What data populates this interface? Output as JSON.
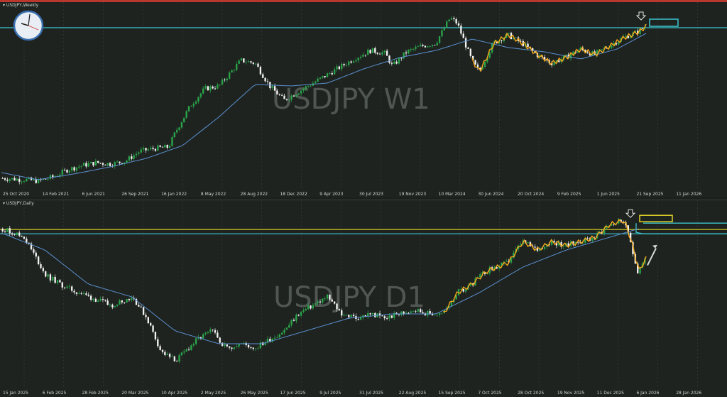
{
  "chart_data": [
    {
      "type": "candlestick",
      "symbol": "USDJPY",
      "timeframe": "Weekly",
      "pane_label": "USDJPY,Weekly",
      "watermark": "USDJPY W1",
      "xlabels": [
        "25 Oct 2020",
        "14 Feb 2021",
        "6 Jun 2021",
        "26 Sep 2021",
        "16 Jan 2022",
        "8 May 2022",
        "28 Aug 2022",
        "18 Dec 2022",
        "9 Apr 2023",
        "30 Jul 2023",
        "19 Nov 2023",
        "10 Mar 2024",
        "30 Jun 2024",
        "20 Oct 2024",
        "9 Feb 2025",
        "1 Jun 2025",
        "21 Sep 2025",
        "11 Jan 2026"
      ],
      "close_path": [
        [
          0,
          104.5
        ],
        [
          0.03,
          104.0
        ],
        [
          0.05,
          103.5
        ],
        [
          0.07,
          105.0
        ],
        [
          0.09,
          107.5
        ],
        [
          0.11,
          109.0
        ],
        [
          0.13,
          110.0
        ],
        [
          0.15,
          109.5
        ],
        [
          0.17,
          110.5
        ],
        [
          0.19,
          114.0
        ],
        [
          0.21,
          115.0
        ],
        [
          0.23,
          115.5
        ],
        [
          0.24,
          121.0
        ],
        [
          0.26,
          130.0
        ],
        [
          0.28,
          136.0
        ],
        [
          0.3,
          137.0
        ],
        [
          0.33,
          146.0
        ],
        [
          0.35,
          145.0
        ],
        [
          0.37,
          137.0
        ],
        [
          0.39,
          132.0
        ],
        [
          0.41,
          135.0
        ],
        [
          0.43,
          138.0
        ],
        [
          0.45,
          141.0
        ],
        [
          0.47,
          144.0
        ],
        [
          0.49,
          147.0
        ],
        [
          0.51,
          149.5
        ],
        [
          0.53,
          148.5
        ],
        [
          0.54,
          144.0
        ],
        [
          0.56,
          149.0
        ],
        [
          0.58,
          151.0
        ],
        [
          0.6,
          152.0
        ],
        [
          0.62,
          161.0
        ],
        [
          0.63,
          159.0
        ],
        [
          0.65,
          146.0
        ],
        [
          0.66,
          142.0
        ],
        [
          0.68,
          152.0
        ],
        [
          0.7,
          155.0
        ],
        [
          0.72,
          152.0
        ],
        [
          0.74,
          148.0
        ],
        [
          0.76,
          145.0
        ],
        [
          0.78,
          147.0
        ],
        [
          0.8,
          150.0
        ],
        [
          0.82,
          148.0
        ],
        [
          0.84,
          151.0
        ],
        [
          0.86,
          154.0
        ],
        [
          0.88,
          156.0
        ],
        [
          0.89,
          158.0
        ]
      ],
      "ma_path": [
        [
          0,
          106.5
        ],
        [
          0.05,
          104.0
        ],
        [
          0.1,
          106.0
        ],
        [
          0.15,
          108.5
        ],
        [
          0.2,
          111.5
        ],
        [
          0.25,
          116.0
        ],
        [
          0.3,
          126.0
        ],
        [
          0.35,
          137.5
        ],
        [
          0.4,
          137.0
        ],
        [
          0.45,
          138.0
        ],
        [
          0.5,
          143.0
        ],
        [
          0.55,
          147.0
        ],
        [
          0.6,
          149.5
        ],
        [
          0.65,
          153.5
        ],
        [
          0.7,
          150.5
        ],
        [
          0.75,
          149.0
        ],
        [
          0.8,
          146.5
        ],
        [
          0.85,
          150.0
        ],
        [
          0.89,
          155.5
        ]
      ],
      "levels": [
        {
          "value": 157.5,
          "color": "#3cc6d0"
        }
      ],
      "line_colors": {
        "up": "#2aa44a",
        "down": "#f2f2f2",
        "ma": "#5b8fd0",
        "zigzag": "#f5a81b",
        "grid": "#3c423d",
        "level_box": "#3cc6d0",
        "clock_face": "#e8eef4"
      }
    },
    {
      "type": "candlestick",
      "symbol": "USDJPY",
      "timeframe": "Daily",
      "pane_label": "USDJPY,Daily",
      "watermark": "USDJPY D1",
      "xlabels": [
        "15 Jan 2025",
        "6 Feb 2025",
        "28 Feb 2025",
        "20 Mar 2025",
        "10 Apr 2025",
        "2 May 2025",
        "26 May 2025",
        "17 Jun 2025",
        "9 Jul 2025",
        "31 Jul 2025",
        "22 Aug 2025",
        "15 Sep 2025",
        "7 Oct 2025",
        "28 Oct 2025",
        "19 Nov 2025",
        "11 Dec 2025",
        "6 Jan 2026",
        "28 Jan 2026"
      ],
      "close_path": [
        [
          0,
          157.5
        ],
        [
          0.03,
          156.5
        ],
        [
          0.06,
          152.0
        ],
        [
          0.09,
          150.5
        ],
        [
          0.12,
          149.5
        ],
        [
          0.15,
          148.5
        ],
        [
          0.18,
          149.5
        ],
        [
          0.2,
          147.0
        ],
        [
          0.22,
          143.0
        ],
        [
          0.24,
          142.0
        ],
        [
          0.27,
          144.5
        ],
        [
          0.29,
          145.5
        ],
        [
          0.31,
          143.5
        ],
        [
          0.33,
          144.0
        ],
        [
          0.35,
          143.5
        ],
        [
          0.37,
          144.5
        ],
        [
          0.39,
          145.5
        ],
        [
          0.41,
          147.5
        ],
        [
          0.43,
          148.5
        ],
        [
          0.45,
          149.5
        ],
        [
          0.47,
          147.5
        ],
        [
          0.49,
          147.0
        ],
        [
          0.51,
          147.5
        ],
        [
          0.53,
          147.0
        ],
        [
          0.55,
          147.5
        ],
        [
          0.57,
          148.0
        ],
        [
          0.59,
          147.5
        ],
        [
          0.61,
          147.5
        ],
        [
          0.63,
          150.0
        ],
        [
          0.65,
          151.0
        ],
        [
          0.67,
          152.5
        ],
        [
          0.7,
          153.5
        ],
        [
          0.72,
          156.0
        ],
        [
          0.74,
          155.0
        ],
        [
          0.76,
          156.0
        ],
        [
          0.78,
          155.5
        ],
        [
          0.8,
          156.0
        ],
        [
          0.82,
          156.5
        ],
        [
          0.84,
          158.0
        ],
        [
          0.86,
          158.5
        ],
        [
          0.87,
          156.0
        ],
        [
          0.88,
          152.5
        ],
        [
          0.89,
          154.0
        ]
      ],
      "ma_path": [
        [
          0,
          157.0
        ],
        [
          0.06,
          155.0
        ],
        [
          0.12,
          151.0
        ],
        [
          0.18,
          149.5
        ],
        [
          0.24,
          145.5
        ],
        [
          0.3,
          144.0
        ],
        [
          0.36,
          144.0
        ],
        [
          0.42,
          145.5
        ],
        [
          0.48,
          147.0
        ],
        [
          0.54,
          147.5
        ],
        [
          0.6,
          147.5
        ],
        [
          0.66,
          150.0
        ],
        [
          0.72,
          153.0
        ],
        [
          0.78,
          155.0
        ],
        [
          0.84,
          156.5
        ],
        [
          0.88,
          157.5
        ]
      ],
      "levels": [
        {
          "value": 157.4,
          "color": "#e2d327"
        },
        {
          "value": 156.9,
          "color": "#3cc6d0"
        }
      ],
      "line_colors": {
        "up": "#2aa44a",
        "down": "#f2f2f2",
        "ma": "#5b8fd0",
        "zigzag": "#f5a81b",
        "grid": "#3c423d",
        "level_box_1": "#e2d327",
        "level_box_2": "#3cc6d0",
        "arrow": "#d9d9d9"
      }
    }
  ]
}
